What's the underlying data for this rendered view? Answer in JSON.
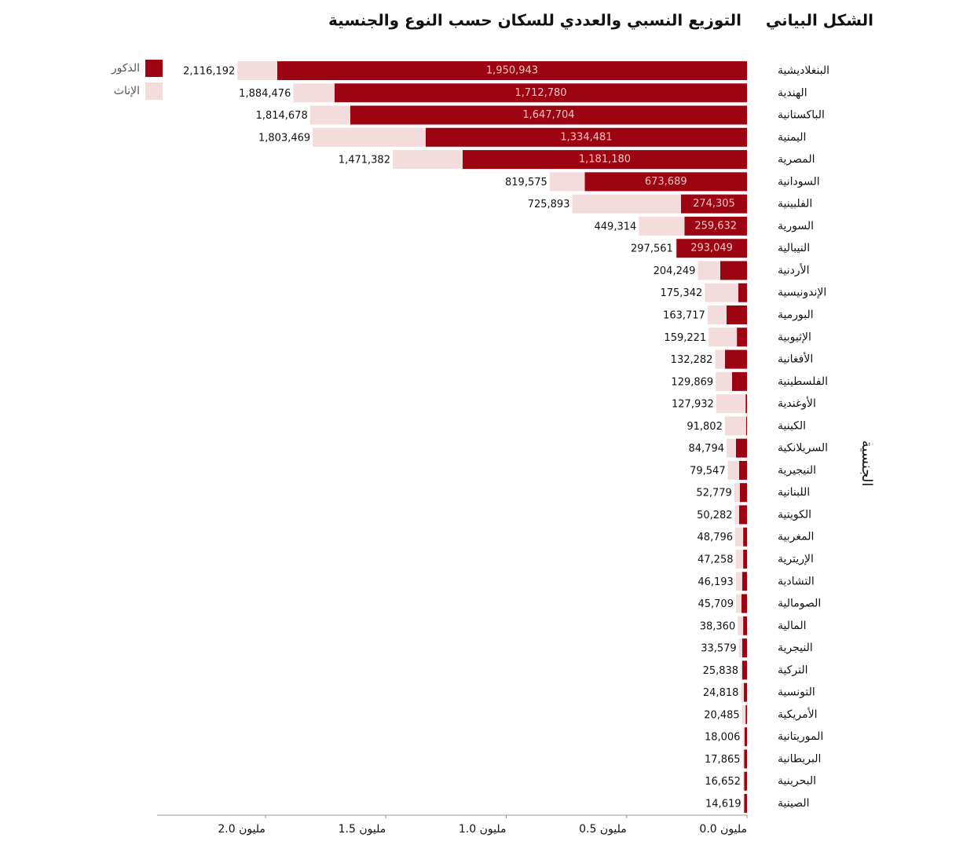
{
  "chart_data": {
    "type": "hbar-stacked",
    "label": "الشكل البياني",
    "title": "التوزيع النسبي والعددي للسكان حسب النوع والجنسية",
    "y_label": "الجنسية",
    "categories": [
      "البنغلاديشية",
      "الهندية",
      "الباكستانية",
      "اليمنية",
      "المصرية",
      "السودانية",
      "الفلبينية",
      "السورية",
      "النيبالية",
      "الأردنية",
      "الإندونيسية",
      "البورمية",
      "الإثيوبية",
      "الأفغانية",
      "الفلسطينية",
      "الأوغندية",
      "الكينية",
      "السريلانكية",
      "النيجيرية",
      "اللبنانية",
      "الكويتية",
      "المغربية",
      "الإريترية",
      "التشادية",
      "الصومالية",
      "المالية",
      "النيجرية",
      "التركية",
      "التونسية",
      "الأمريكية",
      "الموريتانية",
      "البريطانية",
      "البحرينية",
      "الصينية"
    ],
    "series": [
      {
        "name": "الذكور",
        "color": "#9b0410",
        "values": [
          1950943,
          1712780,
          1647704,
          1334481,
          1181180,
          673689,
          274305,
          259632,
          293049,
          111000,
          36000,
          85000,
          42000,
          92000,
          62000,
          6000,
          4000,
          46000,
          33000,
          30000,
          33000,
          16000,
          16000,
          20000,
          23000,
          16000,
          20000,
          20000,
          13000,
          6000,
          10000,
          12000,
          12000,
          12000
        ],
        "value_labels": [
          "1,950,943",
          "1,712,780",
          "1,647,704",
          "1,334,481",
          "1,181,180",
          "673,689",
          "274,305",
          "259,632",
          "293,049",
          null,
          null,
          null,
          null,
          null,
          null,
          null,
          null,
          null,
          null,
          null,
          null,
          null,
          null,
          null,
          null,
          null,
          null,
          null,
          null,
          null,
          null,
          null,
          null,
          null
        ]
      },
      {
        "name": "الإناث",
        "color": "#f5dcdc",
        "values": [
          165249,
          171696,
          166974,
          468988,
          290202,
          145886,
          451588,
          189682,
          4512,
          93249,
          139342,
          78717,
          117221,
          40282,
          67869,
          121932,
          87802,
          38794,
          46547,
          22779,
          17282,
          32796,
          31258,
          26193,
          22709,
          22360,
          13579,
          5838,
          11818,
          14485,
          8006,
          5865,
          4652,
          2619
        ]
      }
    ],
    "total_labels": [
      "2,116,192",
      "1,884,476",
      "1,814,678",
      "1,803,469",
      "1,471,382",
      "819,575",
      "725,893",
      "449,314",
      "297,561",
      "204,249",
      "175,342",
      "163,717",
      "159,221",
      "132,282",
      "129,869",
      "127,932",
      "91,802",
      "84,794",
      "79,547",
      "52,779",
      "50,282",
      "48,796",
      "47,258",
      "46,193",
      "45,709",
      "38,360",
      "33,579",
      "25,838",
      "24,818",
      "20,485",
      "18,006",
      "17,865",
      "16,652",
      "14,619"
    ],
    "xlim": [
      0,
      2450000
    ],
    "xticks": [
      {
        "value": 0,
        "label": "0.0 مليون"
      },
      {
        "value": 500000,
        "label": "0.5 مليون"
      },
      {
        "value": 1000000,
        "label": "1.0 مليون"
      },
      {
        "value": 1500000,
        "label": "1.5 مليون"
      },
      {
        "value": 2000000,
        "label": "2.0 مليون"
      }
    ],
    "legend": "top-left"
  }
}
